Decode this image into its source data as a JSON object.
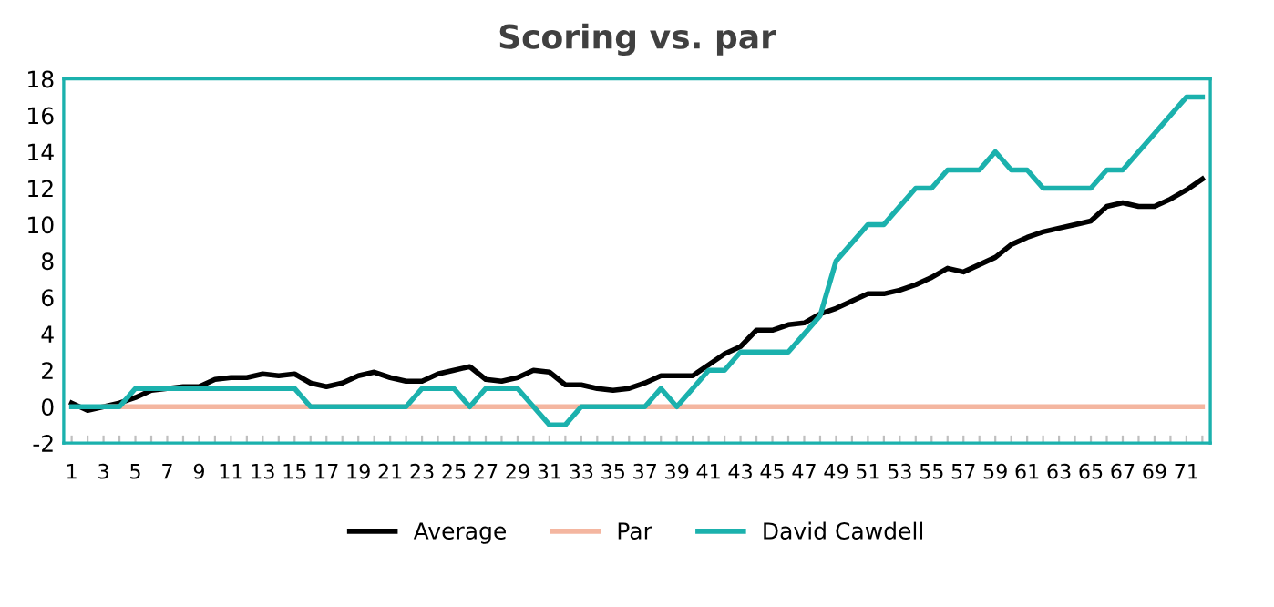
{
  "chart_data": {
    "type": "line",
    "title": "Scoring vs. par",
    "categories": [
      "1",
      null,
      "3",
      null,
      "5",
      null,
      "7",
      null,
      "9",
      null,
      "11",
      null,
      "13",
      null,
      "15",
      null,
      "17",
      null,
      "19",
      null,
      "21",
      null,
      "23",
      null,
      "25",
      null,
      "27",
      null,
      "29",
      null,
      "31",
      null,
      "33",
      null,
      "35",
      null,
      "37",
      null,
      "39",
      null,
      "41",
      null,
      "43",
      null,
      "45",
      null,
      "47",
      null,
      "49",
      null,
      "51",
      null,
      "53",
      null,
      "55",
      null,
      "57",
      null,
      "59",
      null,
      "61",
      null,
      "63",
      null,
      "65",
      null,
      "67",
      null,
      "69",
      null,
      "71",
      null
    ],
    "series": [
      {
        "name": "Average",
        "color": "#000000",
        "values": [
          0.2,
          -0.2,
          0,
          0.2,
          0.5,
          0.9,
          1.0,
          1.1,
          1.1,
          1.5,
          1.6,
          1.6,
          1.8,
          1.7,
          1.8,
          1.3,
          1.1,
          1.3,
          1.7,
          1.9,
          1.6,
          1.4,
          1.4,
          1.8,
          2.0,
          2.2,
          1.5,
          1.4,
          1.6,
          2.0,
          1.9,
          1.2,
          1.2,
          1.0,
          0.9,
          1.0,
          1.3,
          1.7,
          1.7,
          1.7,
          2.3,
          2.9,
          3.3,
          4.2,
          4.2,
          4.5,
          4.6,
          5.1,
          5.4,
          5.8,
          6.2,
          6.2,
          6.4,
          6.7,
          7.1,
          7.6,
          7.4,
          7.8,
          8.2,
          8.9,
          9.3,
          9.6,
          9.8,
          10.0,
          10.2,
          11.0,
          11.2,
          11.0,
          11.0,
          11.4,
          11.9,
          12.5
        ]
      },
      {
        "name": "Par",
        "color": "#f4b6a0",
        "values": [
          null,
          null,
          0,
          0,
          0,
          0,
          0,
          0,
          0,
          0,
          0,
          0,
          0,
          0,
          0,
          0,
          0,
          0,
          0,
          0,
          0,
          0,
          0,
          0,
          0,
          0,
          0,
          0,
          0,
          0,
          0,
          0,
          0,
          0,
          0,
          0,
          0,
          0,
          0,
          0,
          0,
          0,
          0,
          0,
          0,
          0,
          0,
          0,
          0,
          0,
          0,
          0,
          0,
          0,
          0,
          0,
          0,
          0,
          0,
          0,
          0,
          0,
          0,
          0,
          0,
          0,
          0,
          0,
          0,
          0,
          0,
          0
        ]
      },
      {
        "name": "David Cawdell",
        "color": "#1bb1ad",
        "values": [
          0,
          0,
          0,
          0,
          1,
          1,
          1,
          1,
          1,
          1,
          1,
          1,
          1,
          1,
          1,
          0,
          0,
          0,
          0,
          0,
          0,
          0,
          1,
          1,
          1,
          0,
          1,
          1,
          1,
          0,
          -1,
          -1,
          0,
          0,
          0,
          0,
          0,
          1,
          0,
          1,
          2,
          2,
          3,
          3,
          3,
          3,
          4,
          5,
          8,
          9,
          10,
          10,
          11,
          12,
          12,
          13,
          13,
          13,
          14,
          13,
          13,
          12,
          12,
          12,
          12,
          13,
          13,
          14,
          15,
          16,
          17,
          17
        ]
      }
    ],
    "ylim": [
      -2,
      18
    ],
    "yticks": [
      -2,
      0,
      2,
      4,
      6,
      8,
      10,
      12,
      14,
      16,
      18
    ],
    "grid": false,
    "legend": "bottom",
    "marker": "none",
    "line_style": "solid"
  }
}
